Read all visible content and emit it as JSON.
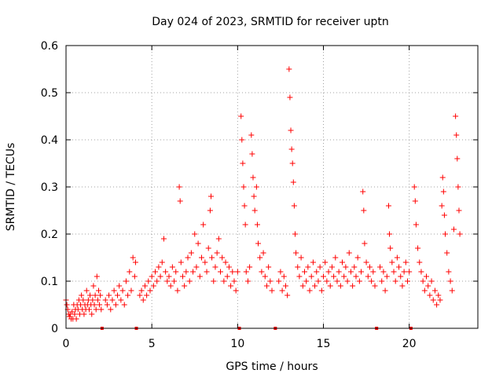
{
  "chart_data": {
    "type": "scatter",
    "title": "Day 024 of 2023, SRMTID for receiver uptn",
    "xlabel": "GPS time / hours",
    "ylabel": "SRMTID / TECUs",
    "xlim": [
      0,
      24
    ],
    "ylim": [
      0,
      0.6
    ],
    "xticks": [
      0,
      5,
      10,
      15,
      20
    ],
    "yticks": [
      0,
      0.1,
      0.2,
      0.3,
      0.4,
      0.5,
      0.6
    ],
    "xtick_labels": [
      "0",
      "5",
      "10",
      "15",
      "20"
    ],
    "ytick_labels": [
      "0",
      "0.1",
      "0.2",
      "0.3",
      "0.4",
      "0.5",
      "0.6"
    ],
    "grid": true,
    "marker": "+",
    "color": "#ff0000",
    "gap_markers_x": [
      2.1,
      4.1,
      10.1,
      12.2,
      18.1,
      20.1
    ],
    "series": [
      {
        "name": "SRMTID",
        "points": [
          [
            0.0,
            0.06
          ],
          [
            0.05,
            0.05
          ],
          [
            0.1,
            0.04
          ],
          [
            0.15,
            0.03
          ],
          [
            0.2,
            0.025
          ],
          [
            0.25,
            0.03
          ],
          [
            0.3,
            0.02
          ],
          [
            0.35,
            0.035
          ],
          [
            0.4,
            0.02
          ],
          [
            0.45,
            0.05
          ],
          [
            0.5,
            0.03
          ],
          [
            0.55,
            0.04
          ],
          [
            0.6,
            0.02
          ],
          [
            0.65,
            0.05
          ],
          [
            0.7,
            0.04
          ],
          [
            0.75,
            0.06
          ],
          [
            0.8,
            0.03
          ],
          [
            0.85,
            0.05
          ],
          [
            0.9,
            0.07
          ],
          [
            0.95,
            0.04
          ],
          [
            1.0,
            0.06
          ],
          [
            1.05,
            0.03
          ],
          [
            1.1,
            0.05
          ],
          [
            1.15,
            0.04
          ],
          [
            1.2,
            0.08
          ],
          [
            1.25,
            0.05
          ],
          [
            1.3,
            0.06
          ],
          [
            1.35,
            0.04
          ],
          [
            1.4,
            0.07
          ],
          [
            1.45,
            0.05
          ],
          [
            1.5,
            0.03
          ],
          [
            1.55,
            0.06
          ],
          [
            1.6,
            0.09
          ],
          [
            1.65,
            0.05
          ],
          [
            1.7,
            0.07
          ],
          [
            1.75,
            0.04
          ],
          [
            1.8,
            0.11
          ],
          [
            1.85,
            0.06
          ],
          [
            1.9,
            0.08
          ],
          [
            1.95,
            0.05
          ],
          [
            2.0,
            0.07
          ],
          [
            2.05,
            0.04
          ],
          [
            2.3,
            0.06
          ],
          [
            2.4,
            0.05
          ],
          [
            2.5,
            0.07
          ],
          [
            2.6,
            0.04
          ],
          [
            2.7,
            0.06
          ],
          [
            2.8,
            0.08
          ],
          [
            2.9,
            0.05
          ],
          [
            3.0,
            0.07
          ],
          [
            3.1,
            0.09
          ],
          [
            3.2,
            0.06
          ],
          [
            3.3,
            0.08
          ],
          [
            3.4,
            0.05
          ],
          [
            3.5,
            0.1
          ],
          [
            3.6,
            0.07
          ],
          [
            3.7,
            0.12
          ],
          [
            3.8,
            0.08
          ],
          [
            3.9,
            0.15
          ],
          [
            4.0,
            0.11
          ],
          [
            4.05,
            0.14
          ],
          [
            4.3,
            0.07
          ],
          [
            4.4,
            0.08
          ],
          [
            4.5,
            0.06
          ],
          [
            4.6,
            0.09
          ],
          [
            4.7,
            0.07
          ],
          [
            4.8,
            0.1
          ],
          [
            4.9,
            0.08
          ],
          [
            5.0,
            0.11
          ],
          [
            5.1,
            0.09
          ],
          [
            5.2,
            0.12
          ],
          [
            5.3,
            0.1
          ],
          [
            5.4,
            0.13
          ],
          [
            5.5,
            0.11
          ],
          [
            5.6,
            0.14
          ],
          [
            5.7,
            0.19
          ],
          [
            5.8,
            0.12
          ],
          [
            5.9,
            0.1
          ],
          [
            6.0,
            0.11
          ],
          [
            6.1,
            0.09
          ],
          [
            6.2,
            0.13
          ],
          [
            6.3,
            0.1
          ],
          [
            6.4,
            0.12
          ],
          [
            6.5,
            0.08
          ],
          [
            6.6,
            0.3
          ],
          [
            6.65,
            0.27
          ],
          [
            6.7,
            0.14
          ],
          [
            6.8,
            0.11
          ],
          [
            6.9,
            0.09
          ],
          [
            7.0,
            0.12
          ],
          [
            7.1,
            0.15
          ],
          [
            7.2,
            0.1
          ],
          [
            7.3,
            0.16
          ],
          [
            7.4,
            0.12
          ],
          [
            7.5,
            0.2
          ],
          [
            7.6,
            0.13
          ],
          [
            7.7,
            0.18
          ],
          [
            7.8,
            0.11
          ],
          [
            7.9,
            0.15
          ],
          [
            8.0,
            0.22
          ],
          [
            8.1,
            0.14
          ],
          [
            8.2,
            0.12
          ],
          [
            8.3,
            0.17
          ],
          [
            8.4,
            0.25
          ],
          [
            8.45,
            0.28
          ],
          [
            8.5,
            0.15
          ],
          [
            8.6,
            0.1
          ],
          [
            8.7,
            0.13
          ],
          [
            8.8,
            0.16
          ],
          [
            8.9,
            0.19
          ],
          [
            9.0,
            0.12
          ],
          [
            9.1,
            0.15
          ],
          [
            9.2,
            0.1
          ],
          [
            9.3,
            0.14
          ],
          [
            9.4,
            0.11
          ],
          [
            9.5,
            0.13
          ],
          [
            9.6,
            0.09
          ],
          [
            9.7,
            0.12
          ],
          [
            9.8,
            0.1
          ],
          [
            9.9,
            0.08
          ],
          [
            10.0,
            0.12
          ],
          [
            10.2,
            0.45
          ],
          [
            10.25,
            0.4
          ],
          [
            10.3,
            0.35
          ],
          [
            10.35,
            0.3
          ],
          [
            10.4,
            0.26
          ],
          [
            10.45,
            0.22
          ],
          [
            10.5,
            0.12
          ],
          [
            10.6,
            0.1
          ],
          [
            10.7,
            0.13
          ],
          [
            10.8,
            0.41
          ],
          [
            10.85,
            0.37
          ],
          [
            10.9,
            0.32
          ],
          [
            10.95,
            0.28
          ],
          [
            11.0,
            0.25
          ],
          [
            11.1,
            0.3
          ],
          [
            11.15,
            0.22
          ],
          [
            11.2,
            0.18
          ],
          [
            11.3,
            0.15
          ],
          [
            11.4,
            0.12
          ],
          [
            11.5,
            0.16
          ],
          [
            11.6,
            0.11
          ],
          [
            11.7,
            0.09
          ],
          [
            11.8,
            0.13
          ],
          [
            11.9,
            0.1
          ],
          [
            12.0,
            0.08
          ],
          [
            12.4,
            0.1
          ],
          [
            12.5,
            0.12
          ],
          [
            12.6,
            0.08
          ],
          [
            12.7,
            0.11
          ],
          [
            12.8,
            0.09
          ],
          [
            12.9,
            0.07
          ],
          [
            13.0,
            0.55
          ],
          [
            13.05,
            0.49
          ],
          [
            13.1,
            0.42
          ],
          [
            13.15,
            0.38
          ],
          [
            13.2,
            0.35
          ],
          [
            13.25,
            0.31
          ],
          [
            13.3,
            0.26
          ],
          [
            13.35,
            0.2
          ],
          [
            13.4,
            0.16
          ],
          [
            13.5,
            0.13
          ],
          [
            13.6,
            0.11
          ],
          [
            13.7,
            0.15
          ],
          [
            13.8,
            0.09
          ],
          [
            13.9,
            0.12
          ],
          [
            14.0,
            0.1
          ],
          [
            14.1,
            0.13
          ],
          [
            14.2,
            0.08
          ],
          [
            14.3,
            0.11
          ],
          [
            14.4,
            0.14
          ],
          [
            14.5,
            0.09
          ],
          [
            14.6,
            0.12
          ],
          [
            14.7,
            0.1
          ],
          [
            14.8,
            0.13
          ],
          [
            14.9,
            0.08
          ],
          [
            15.0,
            0.11
          ],
          [
            15.1,
            0.14
          ],
          [
            15.2,
            0.1
          ],
          [
            15.3,
            0.12
          ],
          [
            15.4,
            0.09
          ],
          [
            15.5,
            0.13
          ],
          [
            15.6,
            0.11
          ],
          [
            15.7,
            0.15
          ],
          [
            15.8,
            0.1
          ],
          [
            15.9,
            0.12
          ],
          [
            16.0,
            0.09
          ],
          [
            16.1,
            0.14
          ],
          [
            16.2,
            0.11
          ],
          [
            16.3,
            0.13
          ],
          [
            16.4,
            0.1
          ],
          [
            16.5,
            0.16
          ],
          [
            16.6,
            0.12
          ],
          [
            16.7,
            0.09
          ],
          [
            16.8,
            0.13
          ],
          [
            16.9,
            0.11
          ],
          [
            17.0,
            0.15
          ],
          [
            17.1,
            0.1
          ],
          [
            17.2,
            0.12
          ],
          [
            17.3,
            0.29
          ],
          [
            17.35,
            0.25
          ],
          [
            17.4,
            0.18
          ],
          [
            17.5,
            0.14
          ],
          [
            17.6,
            0.11
          ],
          [
            17.7,
            0.13
          ],
          [
            17.8,
            0.1
          ],
          [
            17.9,
            0.12
          ],
          [
            18.0,
            0.09
          ],
          [
            18.3,
            0.13
          ],
          [
            18.4,
            0.1
          ],
          [
            18.5,
            0.12
          ],
          [
            18.6,
            0.08
          ],
          [
            18.7,
            0.11
          ],
          [
            18.8,
            0.26
          ],
          [
            18.85,
            0.2
          ],
          [
            18.9,
            0.17
          ],
          [
            19.0,
            0.14
          ],
          [
            19.1,
            0.12
          ],
          [
            19.2,
            0.1
          ],
          [
            19.3,
            0.15
          ],
          [
            19.4,
            0.13
          ],
          [
            19.5,
            0.11
          ],
          [
            19.6,
            0.09
          ],
          [
            19.7,
            0.12
          ],
          [
            19.8,
            0.14
          ],
          [
            19.9,
            0.1
          ],
          [
            20.0,
            0.12
          ],
          [
            20.3,
            0.3
          ],
          [
            20.35,
            0.27
          ],
          [
            20.4,
            0.22
          ],
          [
            20.5,
            0.17
          ],
          [
            20.6,
            0.14
          ],
          [
            20.7,
            0.12
          ],
          [
            20.8,
            0.1
          ],
          [
            20.9,
            0.08
          ],
          [
            21.0,
            0.11
          ],
          [
            21.1,
            0.09
          ],
          [
            21.2,
            0.07
          ],
          [
            21.3,
            0.1
          ],
          [
            21.4,
            0.06
          ],
          [
            21.5,
            0.08
          ],
          [
            21.6,
            0.05
          ],
          [
            21.7,
            0.07
          ],
          [
            21.8,
            0.06
          ],
          [
            21.9,
            0.26
          ],
          [
            21.95,
            0.32
          ],
          [
            22.0,
            0.29
          ],
          [
            22.05,
            0.24
          ],
          [
            22.1,
            0.2
          ],
          [
            22.2,
            0.16
          ],
          [
            22.3,
            0.12
          ],
          [
            22.4,
            0.1
          ],
          [
            22.5,
            0.08
          ],
          [
            22.6,
            0.21
          ],
          [
            22.7,
            0.45
          ],
          [
            22.75,
            0.41
          ],
          [
            22.8,
            0.36
          ],
          [
            22.85,
            0.3
          ],
          [
            22.9,
            0.25
          ],
          [
            22.95,
            0.2
          ]
        ]
      }
    ]
  }
}
